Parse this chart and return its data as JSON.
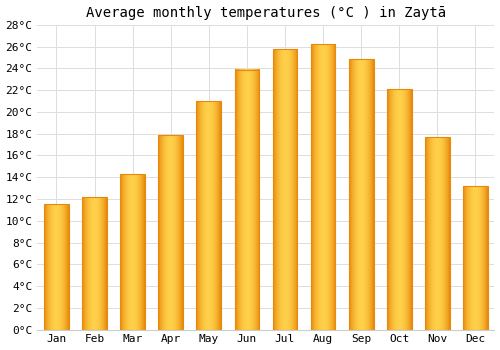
{
  "title": "Average monthly temperatures (°C ) in Zaytā",
  "months": [
    "Jan",
    "Feb",
    "Mar",
    "Apr",
    "May",
    "Jun",
    "Jul",
    "Aug",
    "Sep",
    "Oct",
    "Nov",
    "Dec"
  ],
  "values": [
    11.5,
    12.2,
    14.3,
    17.9,
    21.0,
    23.9,
    25.8,
    26.2,
    24.9,
    22.1,
    17.7,
    13.2
  ],
  "bar_color_light": "#FFD04A",
  "bar_color_dark": "#E8890A",
  "background_color": "#FFFFFF",
  "grid_color": "#DDDDDD",
  "ylim": [
    0,
    28
  ],
  "ytick_step": 2,
  "title_fontsize": 10,
  "tick_fontsize": 8,
  "font_family": "monospace"
}
